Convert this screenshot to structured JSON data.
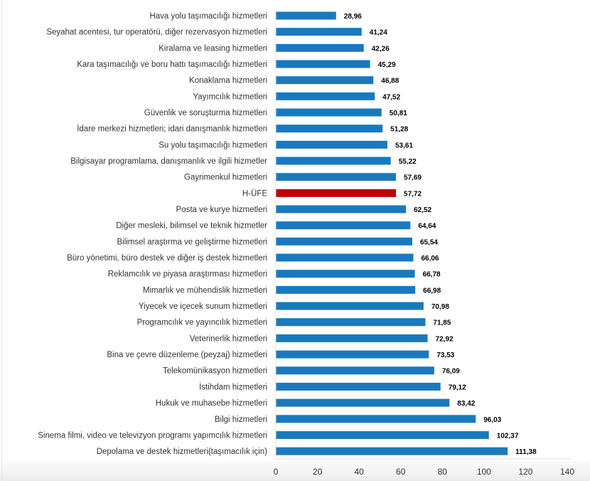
{
  "chart_data": {
    "type": "bar",
    "orientation": "horizontal",
    "categories": [
      "Hava yolu taşımacılığı hizmetleri",
      "Seyahat acentesi, tur operatörü, diğer rezervasyon hizmetleri",
      "Kiralama ve leasing hizmetleri",
      "Kara taşımacılığı ve boru hattı taşımacılığı hizmetleri",
      "Konaklama hizmetleri",
      "Yayımcılık hizmetleri",
      "Güvenlik ve soruşturma hizmetleri",
      "İdare merkezi hizmetleri; idari danışmanlık hizmetleri",
      "Su yolu taşımacılığı hizmetleri",
      "Bilgisayar programlama, danışmanlık ve ilgili hizmetler",
      "Gayrimenkul hizmetleri",
      "H-ÜFE",
      "Posta ve kurye hizmetleri",
      "Diğer mesleki, bilimsel ve teknik hizmetler",
      "Bilimsel araştırma ve geliştirme hizmetleri",
      "Büro yönetimi, büro destek ve diğer iş destek hizmetleri",
      "Reklamcılık ve piyasa araştırması hizmetleri",
      "Mimarlık ve mühendislik hizmetleri",
      "Yiyecek ve içecek sunum hizmetleri",
      "Programcılık ve yayıncılık hizmetleri",
      "Veterinerlik hizmetleri",
      "Bina ve çevre düzenleme (peyzaj) hizmetleri",
      "Telekomünikasyon hizmetleri",
      "İstihdam hizmetleri",
      "Hukuk ve muhasebe hizmetleri",
      "Bilgi hizmetleri",
      "Sinema filmi, video ve televizyon programı yapımcılık hizmetleri",
      "Depolama ve destek hizmetleri(taşımacılık için)"
    ],
    "values": [
      28.96,
      41.24,
      42.26,
      45.29,
      46.88,
      47.52,
      50.81,
      51.28,
      53.61,
      55.22,
      57.69,
      57.72,
      62.52,
      64.64,
      65.54,
      66.06,
      66.78,
      66.98,
      70.98,
      71.85,
      72.92,
      73.53,
      76.09,
      79.12,
      83.42,
      96.03,
      102.37,
      111.38
    ],
    "value_labels": [
      "28,96",
      "41,24",
      "42,26",
      "45,29",
      "46,88",
      "47,52",
      "50,81",
      "51,28",
      "53,61",
      "55,22",
      "57,69",
      "57,72",
      "62,52",
      "64,64",
      "65,54",
      "66,06",
      "66,78",
      "66,98",
      "70,98",
      "71,85",
      "72,92",
      "73,53",
      "76,09",
      "79,12",
      "83,42",
      "96,03",
      "102,37",
      "111,38"
    ],
    "highlight_category": "H-ÜFE",
    "xlim": [
      0,
      140
    ],
    "xticks": [
      "0",
      "20",
      "40",
      "60",
      "80",
      "100",
      "120",
      "140"
    ],
    "xtick_values": [
      0,
      20,
      40,
      60,
      80,
      100,
      120,
      140
    ],
    "title": "",
    "xlabel": "",
    "ylabel": "",
    "grid": false,
    "colors": {
      "bar": "#1a79be",
      "highlight": "#c00000"
    }
  }
}
